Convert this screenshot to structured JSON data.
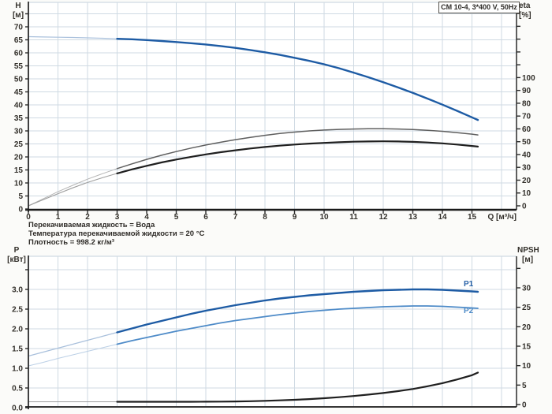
{
  "title_box": "CM 10-4, 3*400 V, 50Hz",
  "notes": {
    "line1": "Перекачиваемая жидкость = Вода",
    "line2": "Температура перекачиваемой жидкости = 20 °C",
    "line3": "Плотность = 998.2 кг/м³"
  },
  "colors": {
    "curve_blue": "#1d5ba4",
    "curve_blue_light": "#4e8bc8",
    "curve_gray": "#5f5f5f",
    "curve_black": "#1f1f1f",
    "thin_blue": "#a9c0dc",
    "thin_blue_light": "#bcd0e6",
    "thin_gray": "#b5b5b5",
    "thin_dark": "#9e9e9e",
    "grid": "#cfdae3",
    "axis": "#2b2b2b",
    "text": "#33302b",
    "plot_bg": "#ffffff"
  },
  "chart_data": [
    {
      "type": "line",
      "title": "CM 10-4, 3*400 V, 50Hz",
      "x_axis": {
        "label": "Q [м³/ч]",
        "min": 0,
        "max": 16.5,
        "grid": true,
        "tick_values": [
          0,
          1,
          2,
          3,
          4,
          5,
          6,
          7,
          8,
          9,
          10,
          11,
          12,
          13,
          14,
          15
        ],
        "tick_labels": [
          "0",
          "1",
          "2",
          "3",
          "4",
          "5",
          "6",
          "7",
          "8",
          "9",
          "10",
          "11",
          "12",
          "13",
          "14",
          "15"
        ]
      },
      "left_axis": {
        "name": "H",
        "unit": "[м]",
        "tick_values": [
          0,
          5,
          10,
          15,
          20,
          25,
          30,
          35,
          40,
          45,
          50,
          55,
          60,
          65,
          70
        ],
        "tick_labels": [
          "0",
          "5",
          "10",
          "15",
          "20",
          "25",
          "30",
          "35",
          "40",
          "45",
          "50",
          "55",
          "60",
          "65",
          "70"
        ],
        "unlabeled_ticks": [
          75
        ]
      },
      "right_axis": {
        "name": "eta",
        "unit": "[%]",
        "tick_values": [
          0,
          10,
          20,
          30,
          40,
          50,
          60,
          70,
          80,
          90,
          100
        ],
        "tick_labels": [
          "0",
          "10",
          "20",
          "30",
          "40",
          "50",
          "60",
          "70",
          "80",
          "90",
          "100"
        ],
        "unlabeled_ticks": [
          110,
          120,
          130,
          140,
          150
        ]
      },
      "series": [
        {
          "name": "H",
          "label": "",
          "axis": "left",
          "color_key": "curve_blue",
          "thin_color_key": "thin_blue",
          "width": 2.4,
          "split_at": 3,
          "points": [
            [
              0,
              66.2
            ],
            [
              0.5,
              66.1
            ],
            [
              1,
              66.0
            ],
            [
              1.5,
              65.9
            ],
            [
              2,
              65.75
            ],
            [
              2.5,
              65.6
            ],
            [
              3,
              65.4
            ],
            [
              3.5,
              65.2
            ],
            [
              4,
              64.9
            ],
            [
              4.5,
              64.55
            ],
            [
              5,
              64.15
            ],
            [
              5.5,
              63.7
            ],
            [
              6,
              63.2
            ],
            [
              6.5,
              62.6
            ],
            [
              7,
              61.9
            ],
            [
              7.5,
              61.1
            ],
            [
              8,
              60.2
            ],
            [
              8.5,
              59.2
            ],
            [
              9,
              58.1
            ],
            [
              9.5,
              56.9
            ],
            [
              10,
              55.6
            ],
            [
              10.5,
              54.1
            ],
            [
              11,
              52.4
            ],
            [
              11.5,
              50.6
            ],
            [
              12,
              48.7
            ],
            [
              12.5,
              46.7
            ],
            [
              13,
              44.6
            ],
            [
              13.5,
              42.4
            ],
            [
              14,
              40.1
            ],
            [
              14.5,
              37.7
            ],
            [
              15,
              35.2
            ],
            [
              15.2,
              34.2
            ]
          ]
        },
        {
          "name": "eta-pump",
          "label": "",
          "axis": "right",
          "color_key": "curve_gray",
          "thin_color_key": "thin_gray",
          "width": 1.5,
          "split_at": 3,
          "points": [
            [
              0,
              0
            ],
            [
              0.5,
              5.5
            ],
            [
              1,
              11
            ],
            [
              1.5,
              16
            ],
            [
              2,
              20.8
            ],
            [
              2.5,
              25
            ],
            [
              3,
              29
            ],
            [
              3.5,
              32.7
            ],
            [
              4,
              36.2
            ],
            [
              4.5,
              39.4
            ],
            [
              5,
              42.3
            ],
            [
              5.5,
              45
            ],
            [
              6,
              47.4
            ],
            [
              6.5,
              49.6
            ],
            [
              7,
              51.6
            ],
            [
              7.5,
              53.4
            ],
            [
              8,
              55
            ],
            [
              8.5,
              56.4
            ],
            [
              9,
              57.5
            ],
            [
              9.5,
              58.4
            ],
            [
              10,
              59.1
            ],
            [
              10.5,
              59.6
            ],
            [
              11,
              59.9
            ],
            [
              11.5,
              60.1
            ],
            [
              12,
              60.1
            ],
            [
              12.5,
              59.9
            ],
            [
              13,
              59.5
            ],
            [
              13.5,
              58.9
            ],
            [
              14,
              58.1
            ],
            [
              14.5,
              57.1
            ],
            [
              15,
              55.9
            ],
            [
              15.2,
              55.3
            ]
          ]
        },
        {
          "name": "eta-pump-motor",
          "label": "",
          "axis": "right",
          "color_key": "curve_black",
          "thin_color_key": "thin_dark",
          "width": 2.2,
          "split_at": 3,
          "points": [
            [
              0,
              0
            ],
            [
              0.5,
              4.8
            ],
            [
              1,
              9.5
            ],
            [
              1.5,
              14
            ],
            [
              2,
              18.2
            ],
            [
              2.5,
              21.9
            ],
            [
              3,
              25.3
            ],
            [
              3.5,
              28.4
            ],
            [
              4,
              31.2
            ],
            [
              4.5,
              33.8
            ],
            [
              5,
              36.1
            ],
            [
              5.5,
              38.2
            ],
            [
              6,
              40.1
            ],
            [
              6.5,
              41.8
            ],
            [
              7,
              43.3
            ],
            [
              7.5,
              44.7
            ],
            [
              8,
              45.9
            ],
            [
              8.5,
              46.9
            ],
            [
              9,
              47.8
            ],
            [
              9.5,
              48.5
            ],
            [
              10,
              49.1
            ],
            [
              10.5,
              49.6
            ],
            [
              11,
              50
            ],
            [
              11.5,
              50.2
            ],
            [
              12,
              50.3
            ],
            [
              12.5,
              50.2
            ],
            [
              13,
              49.9
            ],
            [
              13.5,
              49.4
            ],
            [
              14,
              48.7
            ],
            [
              14.5,
              47.8
            ],
            [
              15,
              46.7
            ],
            [
              15.2,
              46.2
            ]
          ]
        }
      ]
    },
    {
      "type": "line",
      "title": "",
      "x_axis": {
        "label": "",
        "min": 0,
        "max": 16.5,
        "grid": true,
        "tick_values": [],
        "tick_labels": []
      },
      "left_axis": {
        "name": "P",
        "unit": "[кВт]",
        "tick_values": [
          0,
          0.5,
          1,
          1.5,
          2,
          2.5,
          3
        ],
        "tick_labels": [
          "0.0",
          "0.5",
          "1.0",
          "1.5",
          "2.0",
          "2.5",
          "3.0"
        ],
        "unlabeled_ticks": [
          3.5
        ]
      },
      "right_axis": {
        "name": "NPSH",
        "unit": "[м]",
        "tick_values": [
          0,
          5,
          10,
          15,
          20,
          25,
          30
        ],
        "tick_labels": [
          "0",
          "5",
          "10",
          "15",
          "20",
          "25",
          "30"
        ],
        "unlabeled_ticks": [
          35
        ]
      },
      "series": [
        {
          "name": "P1",
          "label": "P1",
          "axis": "left",
          "color_key": "curve_blue",
          "thin_color_key": "thin_blue",
          "width": 2.4,
          "split_at": 3,
          "points": [
            [
              0,
              1.31
            ],
            [
              0.5,
              1.41
            ],
            [
              1,
              1.51
            ],
            [
              1.5,
              1.61
            ],
            [
              2,
              1.71
            ],
            [
              2.5,
              1.81
            ],
            [
              3,
              1.91
            ],
            [
              3.5,
              2.01
            ],
            [
              4,
              2.11
            ],
            [
              4.5,
              2.2
            ],
            [
              5,
              2.29
            ],
            [
              5.5,
              2.38
            ],
            [
              6,
              2.46
            ],
            [
              6.5,
              2.53
            ],
            [
              7,
              2.6
            ],
            [
              7.5,
              2.66
            ],
            [
              8,
              2.72
            ],
            [
              8.5,
              2.77
            ],
            [
              9,
              2.81
            ],
            [
              9.5,
              2.85
            ],
            [
              10,
              2.88
            ],
            [
              10.5,
              2.91
            ],
            [
              11,
              2.94
            ],
            [
              11.5,
              2.96
            ],
            [
              12,
              2.98
            ],
            [
              12.5,
              2.99
            ],
            [
              13,
              3.0
            ],
            [
              13.5,
              3.0
            ],
            [
              14,
              2.99
            ],
            [
              14.5,
              2.97
            ],
            [
              15,
              2.95
            ],
            [
              15.2,
              2.94
            ]
          ]
        },
        {
          "name": "P2",
          "label": "P2",
          "axis": "left",
          "color_key": "curve_blue_light",
          "thin_color_key": "thin_blue_light",
          "width": 1.8,
          "split_at": 3,
          "points": [
            [
              0,
              1.06
            ],
            [
              0.5,
              1.15
            ],
            [
              1,
              1.25
            ],
            [
              1.5,
              1.34
            ],
            [
              2,
              1.43
            ],
            [
              2.5,
              1.52
            ],
            [
              3,
              1.61
            ],
            [
              3.5,
              1.7
            ],
            [
              4,
              1.78
            ],
            [
              4.5,
              1.86
            ],
            [
              5,
              1.94
            ],
            [
              5.5,
              2.01
            ],
            [
              6,
              2.08
            ],
            [
              6.5,
              2.15
            ],
            [
              7,
              2.21
            ],
            [
              7.5,
              2.26
            ],
            [
              8,
              2.31
            ],
            [
              8.5,
              2.36
            ],
            [
              9,
              2.4
            ],
            [
              9.5,
              2.44
            ],
            [
              10,
              2.47
            ],
            [
              10.5,
              2.5
            ],
            [
              11,
              2.52
            ],
            [
              11.5,
              2.54
            ],
            [
              12,
              2.56
            ],
            [
              12.5,
              2.57
            ],
            [
              13,
              2.58
            ],
            [
              13.5,
              2.58
            ],
            [
              14,
              2.57
            ],
            [
              14.5,
              2.55
            ],
            [
              15,
              2.53
            ],
            [
              15.2,
              2.52
            ]
          ]
        },
        {
          "name": "NPSH",
          "label": "",
          "axis": "right",
          "color_key": "curve_black",
          "thin_color_key": "thin_dark",
          "width": 2.2,
          "split_at": 3,
          "points": [
            [
              0,
              0.7
            ],
            [
              0.5,
              0.7
            ],
            [
              1,
              0.7
            ],
            [
              1.5,
              0.7
            ],
            [
              2,
              0.7
            ],
            [
              2.5,
              0.7
            ],
            [
              3,
              0.7
            ],
            [
              3.5,
              0.7
            ],
            [
              4,
              0.7
            ],
            [
              4.5,
              0.7
            ],
            [
              5,
              0.7
            ],
            [
              5.5,
              0.71
            ],
            [
              6,
              0.73
            ],
            [
              6.5,
              0.76
            ],
            [
              7,
              0.8
            ],
            [
              7.5,
              0.86
            ],
            [
              8,
              0.95
            ],
            [
              8.5,
              1.07
            ],
            [
              9,
              1.22
            ],
            [
              9.5,
              1.4
            ],
            [
              10,
              1.62
            ],
            [
              10.5,
              1.88
            ],
            [
              11,
              2.18
            ],
            [
              11.5,
              2.55
            ],
            [
              12,
              2.95
            ],
            [
              12.5,
              3.45
            ],
            [
              13,
              4.0
            ],
            [
              13.5,
              4.7
            ],
            [
              14,
              5.5
            ],
            [
              14.5,
              6.45
            ],
            [
              15,
              7.55
            ],
            [
              15.2,
              8.2
            ]
          ]
        }
      ]
    }
  ]
}
